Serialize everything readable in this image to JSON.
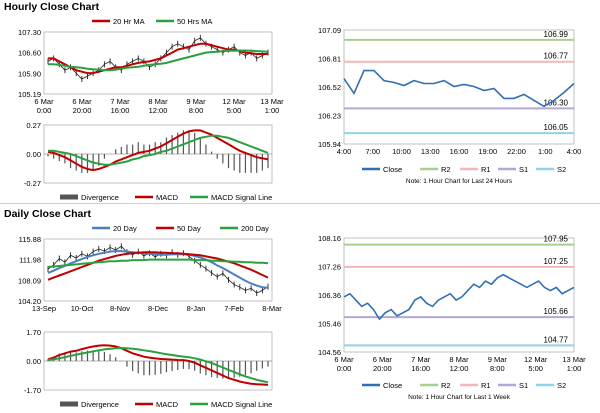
{
  "sections": {
    "hourly_title": "Hourly Close Chart",
    "daily_title": "Daily Close Chart"
  },
  "colors": {
    "price": "#222222",
    "ma_short": "#c00000",
    "ma_long": "#2aa040",
    "ma_mid": "#4a7fc0",
    "macd": "#c00000",
    "signal": "#2aa040",
    "close_line": "#2f6fb5",
    "r2": "#a8d08d",
    "r1": "#f4b6b6",
    "s1": "#b4a7d6",
    "s2": "#8fd3e8"
  },
  "chart_data": [
    {
      "id": "hourly_price",
      "type": "line",
      "legend": [
        "20 Hr MA",
        "50 Hrs MA"
      ],
      "yticks": [
        "107.30",
        "106.60",
        "105.90",
        "105.19"
      ],
      "ylim": [
        105.19,
        107.3
      ],
      "xticks": [
        [
          "6 Mar",
          "0:00"
        ],
        [
          "6 Mar",
          "20:00"
        ],
        [
          "7 Mar",
          "16:00"
        ],
        [
          "8 Mar",
          "12:00"
        ],
        [
          "9 Mar",
          "8:00"
        ],
        [
          "12 Mar",
          "5:00"
        ],
        [
          "13 Mar",
          "1:00"
        ]
      ],
      "series": [
        {
          "name": "Close",
          "values": [
            106.3,
            106.4,
            106.2,
            106.0,
            106.1,
            105.9,
            105.7,
            105.8,
            105.9,
            106.0,
            106.2,
            106.3,
            106.1,
            106.0,
            106.2,
            106.3,
            106.4,
            106.3,
            106.1,
            106.2,
            106.4,
            106.6,
            106.8,
            106.9,
            106.8,
            106.7,
            107.0,
            107.1,
            106.9,
            106.8,
            106.7,
            106.6,
            106.7,
            106.8,
            106.6,
            106.5,
            106.6,
            106.4,
            106.5,
            106.6
          ]
        },
        {
          "name": "20 Hr MA",
          "values": [
            106.4,
            106.4,
            106.3,
            106.2,
            106.1,
            106.0,
            105.95,
            105.9,
            105.9,
            105.95,
            106.0,
            106.05,
            106.1,
            106.1,
            106.15,
            106.2,
            106.25,
            106.28,
            106.3,
            106.35,
            106.4,
            106.5,
            106.6,
            106.7,
            106.75,
            106.8,
            106.85,
            106.9,
            106.9,
            106.85,
            106.8,
            106.75,
            106.7,
            106.7,
            106.65,
            106.6,
            106.58,
            106.55,
            106.55,
            106.55
          ]
        },
        {
          "name": "50 Hrs MA",
          "values": [
            106.2,
            106.2,
            106.18,
            106.15,
            106.12,
            106.1,
            106.08,
            106.05,
            106.03,
            106.02,
            106.0,
            106.0,
            106.02,
            106.05,
            106.08,
            106.1,
            106.12,
            106.15,
            106.18,
            106.2,
            106.22,
            106.25,
            106.3,
            106.35,
            106.4,
            106.45,
            106.5,
            106.55,
            106.6,
            106.62,
            106.63,
            106.65,
            106.66,
            106.66,
            106.67,
            106.67,
            106.66,
            106.65,
            106.64,
            106.63
          ]
        }
      ]
    },
    {
      "id": "hourly_macd",
      "type": "line",
      "legend": [
        "Divergence",
        "MACD",
        "MACD Signal Line"
      ],
      "yticks": [
        "0.27",
        "0.00",
        "-0.27"
      ],
      "ylim": [
        -0.27,
        0.27
      ],
      "series": [
        {
          "name": "MACD",
          "values": [
            0.02,
            0.01,
            -0.01,
            -0.03,
            -0.06,
            -0.09,
            -0.12,
            -0.14,
            -0.15,
            -0.14,
            -0.12,
            -0.1,
            -0.07,
            -0.05,
            -0.03,
            -0.01,
            0.01,
            0.02,
            0.03,
            0.05,
            0.07,
            0.1,
            0.13,
            0.16,
            0.19,
            0.21,
            0.22,
            0.22,
            0.2,
            0.18,
            0.15,
            0.12,
            0.09,
            0.06,
            0.03,
            0.01,
            -0.01,
            -0.03,
            -0.04,
            -0.05
          ]
        },
        {
          "name": "MACD Signal Line",
          "values": [
            0.03,
            0.03,
            0.02,
            0.01,
            0.0,
            -0.02,
            -0.04,
            -0.06,
            -0.08,
            -0.09,
            -0.1,
            -0.1,
            -0.09,
            -0.08,
            -0.07,
            -0.05,
            -0.04,
            -0.02,
            -0.01,
            0.0,
            0.02,
            0.03,
            0.05,
            0.07,
            0.09,
            0.11,
            0.13,
            0.15,
            0.16,
            0.17,
            0.17,
            0.16,
            0.15,
            0.13,
            0.11,
            0.09,
            0.07,
            0.05,
            0.03,
            0.01
          ]
        }
      ]
    },
    {
      "id": "hourly_close",
      "type": "line",
      "yticks": [
        "107.09",
        "106.81",
        "106.52",
        "106.23",
        "105.94"
      ],
      "ylim": [
        105.94,
        107.09
      ],
      "xticks": [
        "4:00",
        "7:00",
        "10:00",
        "13:00",
        "16:00",
        "19:00",
        "22:00",
        "1:00",
        "4:00"
      ],
      "levels": [
        {
          "name": "R2",
          "value": 106.99,
          "label": "106.99"
        },
        {
          "name": "R1",
          "value": 106.77,
          "label": "106.77"
        },
        {
          "name": "S1",
          "value": 106.3,
          "label": "106.30"
        },
        {
          "name": "S2",
          "value": 106.05,
          "label": "106.05"
        }
      ],
      "close": [
        106.6,
        106.45,
        106.68,
        106.68,
        106.58,
        106.56,
        106.53,
        106.58,
        106.55,
        106.55,
        106.58,
        106.52,
        106.54,
        106.52,
        106.48,
        106.5,
        106.4,
        106.4,
        106.44,
        106.38,
        106.32,
        106.38,
        106.46,
        106.55
      ],
      "legend": [
        "Close",
        "R2",
        "R1",
        "S1",
        "S2"
      ],
      "note": "Note: 1 Hour Chart for Last 24 Hours"
    },
    {
      "id": "daily_price",
      "type": "line",
      "legend": [
        "20 Day",
        "50 Day",
        "200 Day"
      ],
      "yticks": [
        "115.88",
        "111.98",
        "108.09",
        "104.20"
      ],
      "ylim": [
        104.2,
        115.88
      ],
      "xticks": [
        "13-Sep",
        "10-Oct",
        "8-Nov",
        "8-Dec",
        "8-Jan",
        "7-Feb",
        "8-Mar"
      ],
      "series": [
        {
          "name": "Close",
          "values": [
            110.2,
            111.0,
            112.2,
            111.5,
            112.8,
            112.3,
            113.1,
            112.6,
            113.5,
            114.0,
            113.6,
            114.3,
            113.8,
            114.5,
            113.4,
            112.9,
            113.5,
            112.7,
            113.2,
            112.5,
            113.1,
            112.8,
            113.4,
            112.9,
            113.2,
            112.6,
            111.8,
            111.0,
            110.3,
            109.5,
            108.8,
            109.4,
            108.2,
            107.3,
            106.8,
            106.2,
            106.6,
            105.7,
            106.2,
            106.9
          ]
        },
        {
          "name": "20 Day",
          "values": [
            109.5,
            109.9,
            110.4,
            110.8,
            111.3,
            111.7,
            112.1,
            112.5,
            112.8,
            113.1,
            113.3,
            113.5,
            113.6,
            113.6,
            113.5,
            113.4,
            113.3,
            113.2,
            113.1,
            113.0,
            112.9,
            112.9,
            113.0,
            113.0,
            113.0,
            112.9,
            112.7,
            112.4,
            112.0,
            111.5,
            110.9,
            110.4,
            109.8,
            109.2,
            108.6,
            108.0,
            107.5,
            107.1,
            106.8,
            106.7
          ]
        },
        {
          "name": "50 Day",
          "values": [
            108.2,
            108.6,
            109.0,
            109.4,
            109.8,
            110.2,
            110.6,
            111.0,
            111.4,
            111.8,
            112.1,
            112.4,
            112.7,
            112.9,
            113.1,
            113.2,
            113.3,
            113.4,
            113.4,
            113.4,
            113.3,
            113.3,
            113.2,
            113.2,
            113.1,
            113.0,
            112.9,
            112.8,
            112.6,
            112.4,
            112.2,
            111.9,
            111.6,
            111.3,
            110.9,
            110.5,
            110.1,
            109.6,
            109.1,
            108.6
          ]
        },
        {
          "name": "200 Day",
          "values": [
            110.6,
            110.7,
            110.8,
            110.9,
            111.0,
            111.1,
            111.2,
            111.3,
            111.4,
            111.5,
            111.6,
            111.7,
            111.7,
            111.8,
            111.8,
            111.9,
            111.9,
            111.9,
            112.0,
            112.0,
            112.0,
            112.0,
            112.0,
            112.0,
            112.0,
            112.0,
            111.9,
            111.9,
            111.9,
            111.8,
            111.8,
            111.7,
            111.7,
            111.6,
            111.6,
            111.5,
            111.5,
            111.4,
            111.4,
            111.3
          ]
        }
      ]
    },
    {
      "id": "daily_macd",
      "type": "line",
      "legend": [
        "Divergence",
        "MACD",
        "MACD Signal Line"
      ],
      "yticks": [
        "1.70",
        "0.00",
        "-1.70"
      ],
      "ylim": [
        -1.7,
        1.7
      ],
      "series": [
        {
          "name": "MACD",
          "values": [
            0.1,
            0.2,
            0.35,
            0.45,
            0.55,
            0.6,
            0.7,
            0.78,
            0.85,
            0.9,
            0.92,
            0.9,
            0.85,
            0.75,
            0.6,
            0.45,
            0.35,
            0.25,
            0.2,
            0.15,
            0.12,
            0.1,
            0.08,
            0.06,
            0.05,
            0.0,
            -0.1,
            -0.25,
            -0.4,
            -0.55,
            -0.7,
            -0.85,
            -1.0,
            -1.1,
            -1.2,
            -1.28,
            -1.33,
            -1.36,
            -1.38,
            -1.4
          ]
        },
        {
          "name": "MACD Signal Line",
          "values": [
            0.05,
            0.1,
            0.15,
            0.22,
            0.3,
            0.37,
            0.44,
            0.5,
            0.57,
            0.63,
            0.68,
            0.72,
            0.75,
            0.76,
            0.75,
            0.72,
            0.68,
            0.63,
            0.58,
            0.52,
            0.46,
            0.4,
            0.35,
            0.3,
            0.26,
            0.22,
            0.16,
            0.08,
            -0.02,
            -0.12,
            -0.25,
            -0.38,
            -0.52,
            -0.65,
            -0.78,
            -0.9,
            -1.0,
            -1.1,
            -1.18,
            -1.25
          ]
        }
      ]
    },
    {
      "id": "weekly_close",
      "type": "line",
      "yticks": [
        "108.16",
        "107.26",
        "106.36",
        "105.46",
        "104.56"
      ],
      "ylim": [
        104.56,
        108.16
      ],
      "xticks": [
        [
          "6 Mar",
          "0:00"
        ],
        [
          "6 Mar",
          "20:00"
        ],
        [
          "7 Mar",
          "16:00"
        ],
        [
          "8 Mar",
          "12:00"
        ],
        [
          "9 Mar",
          "8:00"
        ],
        [
          "12 Mar",
          "5:00"
        ],
        [
          "13 Mar",
          "1:00"
        ]
      ],
      "levels": [
        {
          "name": "R2",
          "value": 107.95,
          "label": "107.95"
        },
        {
          "name": "R1",
          "value": 107.25,
          "label": "107.25"
        },
        {
          "name": "S1",
          "value": 105.66,
          "label": "105.66"
        },
        {
          "name": "S2",
          "value": 104.77,
          "label": "104.77"
        }
      ],
      "close": [
        106.3,
        106.4,
        106.2,
        106.0,
        106.1,
        105.9,
        105.6,
        105.8,
        105.9,
        105.7,
        105.8,
        105.9,
        106.2,
        106.3,
        106.1,
        106.0,
        106.2,
        106.3,
        106.4,
        106.2,
        106.3,
        106.5,
        106.7,
        106.6,
        106.8,
        106.7,
        106.9,
        107.0,
        106.9,
        106.8,
        106.7,
        106.6,
        106.7,
        106.8,
        106.6,
        106.5,
        106.6,
        106.4,
        106.5,
        106.6
      ],
      "legend": [
        "Close",
        "R2",
        "R1",
        "S1",
        "S2"
      ],
      "note": "Note: 1 Hour Chart for Last 1 Week"
    }
  ]
}
